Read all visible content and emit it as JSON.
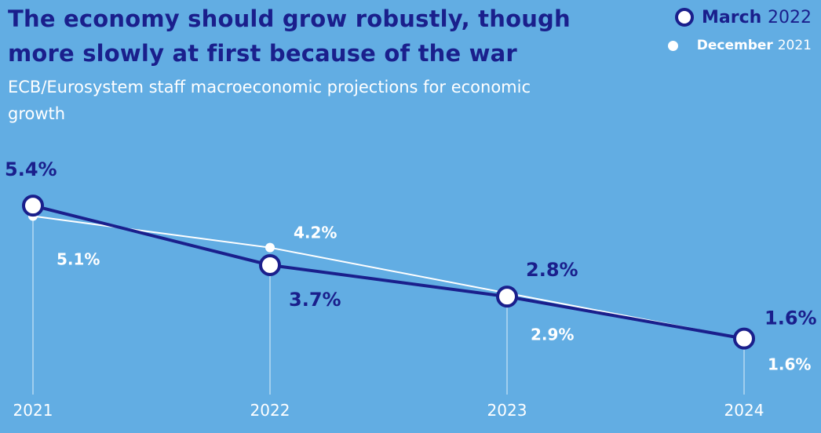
{
  "header": {
    "title": "The economy should grow robustly, though more slowly at first because of the war",
    "subtitle": "ECB/Eurosystem staff macroeconomic projections for economic growth"
  },
  "legend": {
    "march_name": "March",
    "march_year": "2022",
    "december_name": "December",
    "december_year": "2021"
  },
  "colors": {
    "background": "#62ade3",
    "march": "#1a1f8c",
    "december": "#ffffff"
  },
  "chart_data": {
    "type": "line",
    "title": "The economy should grow robustly, though more slowly at first because of the war",
    "subtitle": "ECB/Eurosystem staff macroeconomic projections for economic growth",
    "categories": [
      "2021",
      "2022",
      "2023",
      "2024"
    ],
    "series": [
      {
        "name": "March 2022",
        "values": [
          5.4,
          3.7,
          2.8,
          1.6
        ],
        "labels": [
          "5.4%",
          "3.7%",
          "2.8%",
          "1.6%"
        ]
      },
      {
        "name": "December 2021",
        "values": [
          5.1,
          4.2,
          2.9,
          1.6
        ],
        "labels": [
          "5.1%",
          "4.2%",
          "2.9%",
          "1.6%"
        ]
      }
    ],
    "ylim": [
      0,
      6
    ],
    "grid": false,
    "legend_position": "top-right"
  }
}
